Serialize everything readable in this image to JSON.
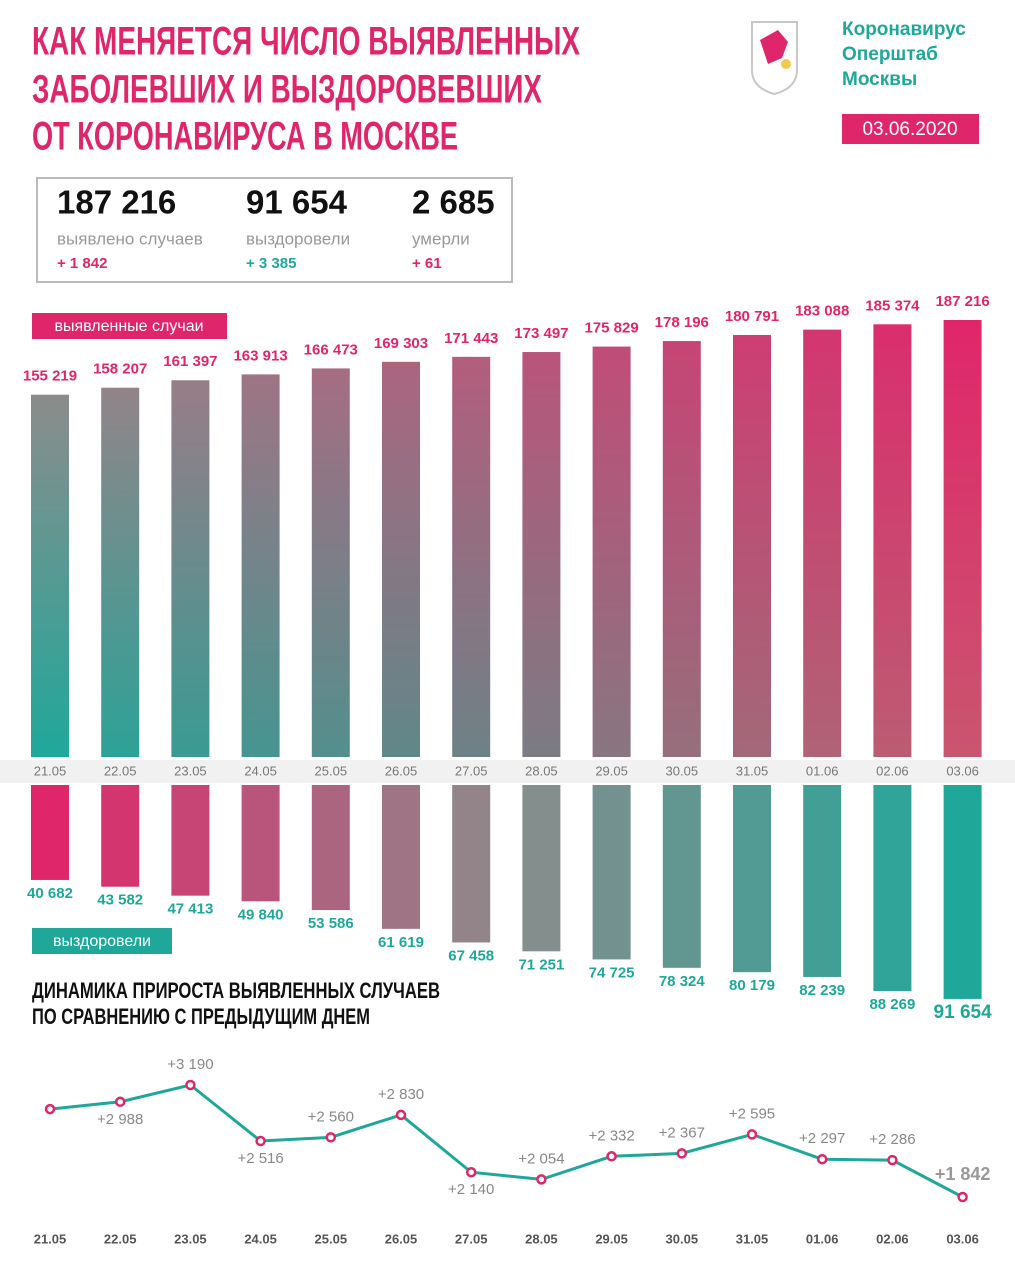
{
  "header": {
    "title": [
      "КАК МЕНЯЕТСЯ ЧИСЛО ВЫЯВЛЕННЫХ",
      "ЗАБОЛЕВШИХ И ВЫЗДОРОВЕВШИХ",
      "ОТ КОРОНАВИРУСА В МОСКВЕ"
    ],
    "brand": [
      "Коронавирус",
      "Оперштаб",
      "Москвы"
    ],
    "date": "03.06.2020"
  },
  "stats": [
    {
      "value": "187 216",
      "label": "выявлено случаев",
      "change": "+ 1 842"
    },
    {
      "value": "91 654",
      "label": "выздоровели",
      "change": "+ 3 385"
    },
    {
      "value": "2 685",
      "label": "умерли",
      "change": "+ 61"
    }
  ],
  "chart_data": [
    {
      "type": "bar",
      "categories": [
        "21.05",
        "22.05",
        "23.05",
        "24.05",
        "25.05",
        "26.05",
        "27.05",
        "28.05",
        "29.05",
        "30.05",
        "31.05",
        "01.06",
        "02.06",
        "03.06"
      ],
      "series": [
        {
          "name": "выявленные случаи",
          "color": "#e0266a",
          "values": [
            155219,
            158207,
            161397,
            163913,
            166473,
            169303,
            171443,
            173497,
            175829,
            178196,
            180791,
            183088,
            185374,
            187216
          ],
          "value_labels": [
            "155 219",
            "158 207",
            "161 397",
            "163 913",
            "166 473",
            "169 303",
            "171 443",
            "173 497",
            "175 829",
            "178 196",
            "180 791",
            "183 088",
            "185 374",
            "187 216"
          ]
        },
        {
          "name": "выздоровели",
          "color": "#1fa89a",
          "values": [
            40682,
            43582,
            47413,
            49840,
            53586,
            61619,
            67458,
            71251,
            74725,
            78324,
            80179,
            82239,
            88269,
            91654
          ],
          "value_labels": [
            "40 682",
            "43 582",
            "47 413",
            "49 840",
            "53 586",
            "61 619",
            "67 458",
            "71 251",
            "74 725",
            "78 324",
            "80 179",
            "82 239",
            "88 269",
            "91 654"
          ]
        }
      ]
    },
    {
      "type": "line",
      "title": [
        "ДИНАМИКА ПРИРОСТА ВЫЯВЛЕННЫХ СЛУЧАЕВ",
        "ПО СРАВНЕНИЮ С ПРЕДЫДУЩИМ ДНЕМ"
      ],
      "categories": [
        "21.05",
        "22.05",
        "23.05",
        "24.05",
        "25.05",
        "26.05",
        "27.05",
        "28.05",
        "29.05",
        "30.05",
        "31.05",
        "01.06",
        "02.06",
        "03.06"
      ],
      "color": "#1fa89a",
      "values": [
        2900,
        2988,
        3190,
        2516,
        2560,
        2830,
        2140,
        2054,
        2332,
        2367,
        2595,
        2297,
        2286,
        1842
      ],
      "value_labels": [
        null,
        "+2 988",
        "+3 190",
        "+2 516",
        "+2 560",
        "+2 830",
        "+2 140",
        "+2 054",
        "+2 332",
        "+2 367",
        "+2 595",
        "+2 297",
        "+2 286",
        "+1 842"
      ]
    }
  ]
}
